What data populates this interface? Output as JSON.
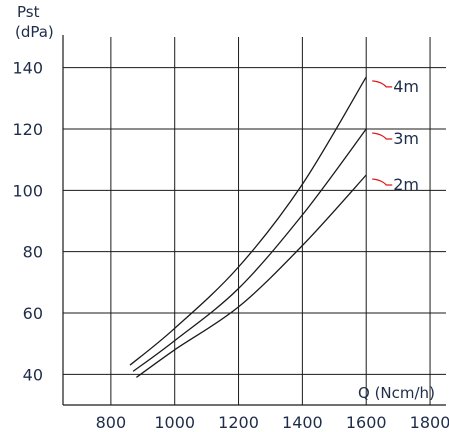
{
  "chart_data": {
    "type": "line",
    "ylabel_line1": "Pst",
    "ylabel_line2": "(dPa)",
    "xlabel": "Q (Ncm/h)",
    "xlim": [
      650,
      1850
    ],
    "ylim": [
      30,
      150
    ],
    "xticks": [
      800,
      1000,
      1200,
      1400,
      1600,
      1800
    ],
    "yticks": [
      40,
      60,
      80,
      100,
      120,
      140
    ],
    "grid": true,
    "leader_color": "#e01818",
    "series": [
      {
        "name": "4m",
        "x": [
          860,
          1000,
          1200,
          1400,
          1600
        ],
        "y": [
          43,
          55,
          75,
          102,
          137
        ]
      },
      {
        "name": "3m",
        "x": [
          870,
          1000,
          1200,
          1400,
          1600
        ],
        "y": [
          41,
          51,
          68,
          92,
          120
        ]
      },
      {
        "name": "2m",
        "x": [
          880,
          1000,
          1200,
          1400,
          1600
        ],
        "y": [
          39,
          48,
          62,
          82,
          105
        ]
      }
    ]
  }
}
